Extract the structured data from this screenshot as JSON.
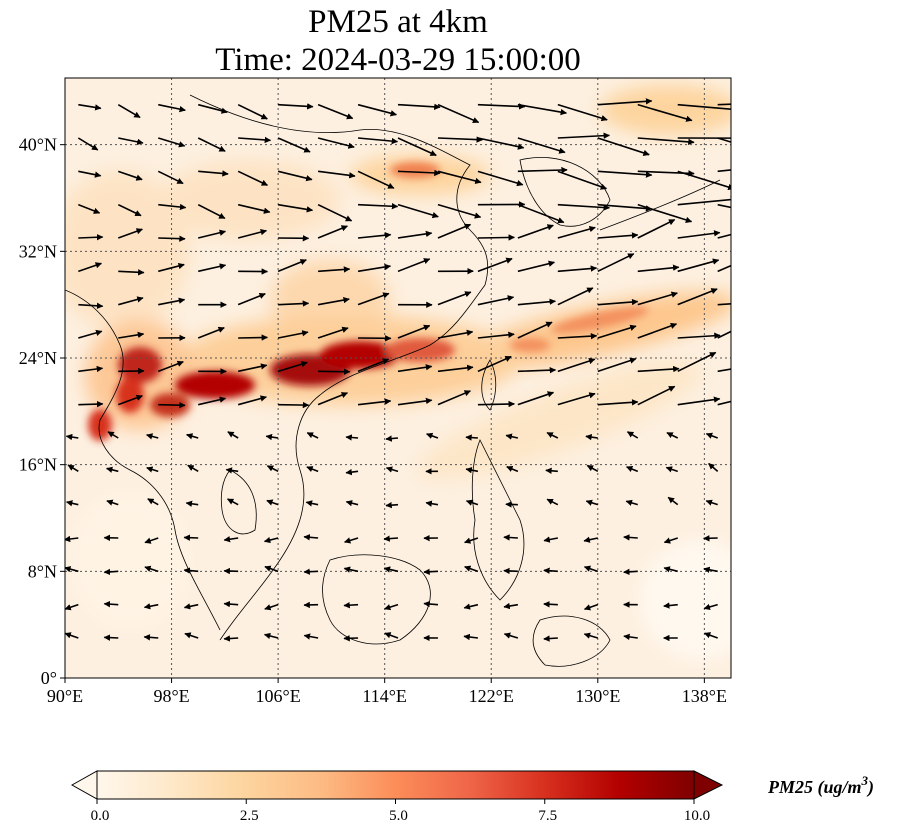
{
  "title": {
    "line1": "PM25 at 4km",
    "line2": "Time: 2024-03-29 15:00:00"
  },
  "map": {
    "extent": {
      "lon": [
        90,
        140
      ],
      "lat": [
        0,
        45
      ]
    },
    "lon_ticks": [
      {
        "value": 90,
        "label": "90°E"
      },
      {
        "value": 98,
        "label": "98°E"
      },
      {
        "value": 106,
        "label": "106°E"
      },
      {
        "value": 114,
        "label": "114°E"
      },
      {
        "value": 122,
        "label": "122°E"
      },
      {
        "value": 130,
        "label": "130°E"
      },
      {
        "value": 138,
        "label": "138°E"
      }
    ],
    "lat_ticks": [
      {
        "value": 0,
        "label": "0°"
      },
      {
        "value": 8,
        "label": "8°N"
      },
      {
        "value": 16,
        "label": "16°N"
      },
      {
        "value": 24,
        "label": "24°N"
      },
      {
        "value": 32,
        "label": "32°N"
      },
      {
        "value": 40,
        "label": "40°N"
      }
    ],
    "gridlines": true,
    "vectors": "wind"
  },
  "colorbar": {
    "cmap": "OrRd",
    "min": 0.0,
    "max": 10.0,
    "extend": "both",
    "ticks": [
      {
        "value": 0.0,
        "label": "0.0"
      },
      {
        "value": 2.5,
        "label": "2.5"
      },
      {
        "value": 5.0,
        "label": "5.0"
      },
      {
        "value": 7.5,
        "label": "7.5"
      },
      {
        "value": 10.0,
        "label": "10.0"
      }
    ],
    "label_main": "PM25 (ug/m",
    "label_sup": "3",
    "label_close": ")",
    "colors": [
      "#fff7ec",
      "#fee8c8",
      "#fdd49e",
      "#fdbb84",
      "#fc8d59",
      "#ef6548",
      "#d7301f",
      "#b30000",
      "#7f0000"
    ]
  }
}
